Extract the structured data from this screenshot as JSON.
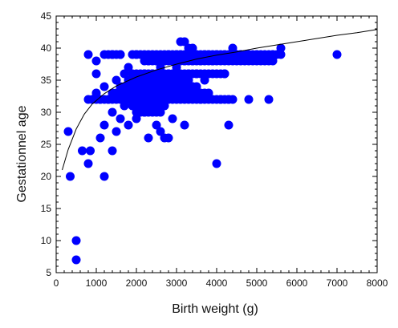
{
  "chart_data": {
    "type": "scatter",
    "xlabel": "Birth weight (g)",
    "ylabel": "Gestationnel age",
    "xlim": [
      0,
      8000
    ],
    "ylim": [
      5,
      45
    ],
    "x_ticks": [
      0,
      1000,
      2000,
      3000,
      4000,
      5000,
      6000,
      7000,
      8000
    ],
    "y_ticks": [
      5,
      10,
      15,
      20,
      25,
      30,
      35,
      40,
      45
    ],
    "grid": false,
    "legend": "none",
    "marker_color": "#0000ff",
    "line_color": "#000000",
    "points": [
      [
        300,
        27
      ],
      [
        350,
        20
      ],
      [
        500,
        10
      ],
      [
        500,
        7
      ],
      [
        650,
        24
      ],
      [
        800,
        22
      ],
      [
        850,
        24
      ],
      [
        800,
        39
      ],
      [
        800,
        32
      ],
      [
        1000,
        36
      ],
      [
        1000,
        38
      ],
      [
        1000,
        33
      ],
      [
        1100,
        32
      ],
      [
        1100,
        26
      ],
      [
        1200,
        28
      ],
      [
        1200,
        20
      ],
      [
        1200,
        34
      ],
      [
        1300,
        32
      ],
      [
        1400,
        24
      ],
      [
        1400,
        39
      ],
      [
        1400,
        33
      ],
      [
        1400,
        30
      ],
      [
        1500,
        35
      ],
      [
        1500,
        27
      ],
      [
        1600,
        39
      ],
      [
        1600,
        34
      ],
      [
        1600,
        29
      ],
      [
        1700,
        31
      ],
      [
        1700,
        36
      ],
      [
        1800,
        37
      ],
      [
        1800,
        33
      ],
      [
        1800,
        28
      ],
      [
        1900,
        32
      ],
      [
        2000,
        39
      ],
      [
        2000,
        35
      ],
      [
        2000,
        33
      ],
      [
        2000,
        29
      ],
      [
        2100,
        34
      ],
      [
        2100,
        31
      ],
      [
        2200,
        36
      ],
      [
        2200,
        32
      ],
      [
        2200,
        30
      ],
      [
        2300,
        38
      ],
      [
        2300,
        35
      ],
      [
        2300,
        26
      ],
      [
        2400,
        36
      ],
      [
        2400,
        33
      ],
      [
        2400,
        31
      ],
      [
        2500,
        38
      ],
      [
        2500,
        35
      ],
      [
        2500,
        28
      ],
      [
        2600,
        37
      ],
      [
        2600,
        34
      ],
      [
        2600,
        27
      ],
      [
        2700,
        38
      ],
      [
        2700,
        35
      ],
      [
        2700,
        26
      ],
      [
        2800,
        39
      ],
      [
        2800,
        36
      ],
      [
        2800,
        32
      ],
      [
        2800,
        26
      ],
      [
        2900,
        38
      ],
      [
        2900,
        29
      ],
      [
        3000,
        39
      ],
      [
        3000,
        37
      ],
      [
        3000,
        33
      ],
      [
        3100,
        41
      ],
      [
        3100,
        39
      ],
      [
        3100,
        35
      ],
      [
        3200,
        41
      ],
      [
        3200,
        38
      ],
      [
        3200,
        28
      ],
      [
        3300,
        40
      ],
      [
        3300,
        36
      ],
      [
        3400,
        40
      ],
      [
        3400,
        38
      ],
      [
        3400,
        34
      ],
      [
        3500,
        39
      ],
      [
        3500,
        36
      ],
      [
        3600,
        38
      ],
      [
        3600,
        32
      ],
      [
        3700,
        39
      ],
      [
        3700,
        35
      ],
      [
        3800,
        39
      ],
      [
        3900,
        38
      ],
      [
        4000,
        22
      ],
      [
        4000,
        39
      ],
      [
        4100,
        32
      ],
      [
        4200,
        39
      ],
      [
        4200,
        36
      ],
      [
        4300,
        28
      ],
      [
        4300,
        32
      ],
      [
        4400,
        40
      ],
      [
        4500,
        39
      ],
      [
        4600,
        39
      ],
      [
        4700,
        39
      ],
      [
        4800,
        39
      ],
      [
        4800,
        32
      ],
      [
        5000,
        39
      ],
      [
        5300,
        32
      ],
      [
        5400,
        39
      ],
      [
        5600,
        39
      ],
      [
        5600,
        40
      ],
      [
        7000,
        39
      ]
    ],
    "point_bands": [
      {
        "y": 39,
        "x_from": 1900,
        "x_to": 5500,
        "step": 100
      },
      {
        "y": 38,
        "x_from": 2200,
        "x_to": 5400,
        "step": 100
      },
      {
        "y": 32,
        "x_from": 900,
        "x_to": 4400,
        "step": 100
      },
      {
        "y": 36,
        "x_from": 1900,
        "x_to": 4200,
        "step": 100
      },
      {
        "y": 33,
        "x_from": 1500,
        "x_to": 3800,
        "step": 100
      },
      {
        "y": 34,
        "x_from": 1700,
        "x_to": 3500,
        "step": 100
      },
      {
        "y": 35,
        "x_from": 1800,
        "x_to": 3300,
        "step": 100
      },
      {
        "y": 31,
        "x_from": 1900,
        "x_to": 2700,
        "step": 100
      },
      {
        "y": 30,
        "x_from": 2000,
        "x_to": 2600,
        "step": 100
      },
      {
        "y": 39,
        "x_from": 1200,
        "x_to": 1600,
        "step": 100
      }
    ],
    "fit_line": [
      [
        150,
        21
      ],
      [
        300,
        24.2
      ],
      [
        500,
        27.4
      ],
      [
        700,
        29.7
      ],
      [
        900,
        31.3
      ],
      [
        1200,
        32.9
      ],
      [
        1500,
        34.1
      ],
      [
        2000,
        35.5
      ],
      [
        2500,
        36.6
      ],
      [
        3000,
        37.5
      ],
      [
        3500,
        38.3
      ],
      [
        4000,
        38.9
      ],
      [
        4500,
        39.4
      ],
      [
        5000,
        40
      ],
      [
        5500,
        40.5
      ],
      [
        6000,
        41
      ],
      [
        6500,
        41.5
      ],
      [
        7000,
        42
      ],
      [
        7500,
        42.4
      ],
      [
        8000,
        42.9
      ]
    ]
  }
}
